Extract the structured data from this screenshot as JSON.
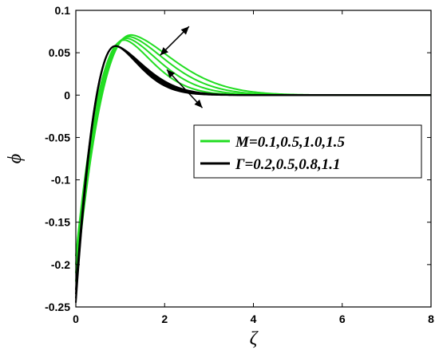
{
  "chart_data": {
    "type": "line",
    "xlabel": "ζ",
    "ylabel": "ϕ",
    "xlim": [
      0,
      8
    ],
    "ylim": [
      -0.25,
      0.1
    ],
    "xticks": [
      0,
      2,
      4,
      6,
      8
    ],
    "xtick_labels": [
      "0",
      "2",
      "4",
      "6",
      "8"
    ],
    "yticks": [
      0.1,
      0.05,
      0,
      -0.05,
      -0.1,
      -0.15,
      -0.2,
      -0.25
    ],
    "ytick_labels": [
      "0.1",
      "0.05",
      "0",
      "-0.05",
      "-0.1",
      "-0.15",
      "-0.2",
      "-0.25"
    ],
    "grid": false,
    "legend": {
      "placement": "right",
      "entries": [
        {
          "label": "M=0.1,0.5,1.0,1.5",
          "color": "#22dd22"
        },
        {
          "label": "Γ=0.2,0.5,0.8,1.1",
          "color": "#000000"
        }
      ]
    },
    "series": [
      {
        "group": "M",
        "color": "#22dd22",
        "y0": -0.19,
        "peak_x": 1.1,
        "peak_y": 0.065,
        "decay": 0.95
      },
      {
        "group": "M",
        "color": "#22dd22",
        "y0": -0.2,
        "peak_x": 1.15,
        "peak_y": 0.067,
        "decay": 1.1
      },
      {
        "group": "M",
        "color": "#22dd22",
        "y0": -0.21,
        "peak_x": 1.2,
        "peak_y": 0.069,
        "decay": 1.25
      },
      {
        "group": "M",
        "color": "#22dd22",
        "y0": -0.22,
        "peak_x": 1.25,
        "peak_y": 0.071,
        "decay": 1.4
      },
      {
        "group": "Γ",
        "color": "#000000",
        "y0": -0.245,
        "peak_x": 0.9,
        "peak_y": 0.058,
        "decay": 0.8
      },
      {
        "group": "Γ",
        "color": "#000000",
        "y0": -0.24,
        "peak_x": 0.9,
        "peak_y": 0.058,
        "decay": 0.85
      },
      {
        "group": "Γ",
        "color": "#000000",
        "y0": -0.235,
        "peak_x": 0.9,
        "peak_y": 0.058,
        "decay": 0.9
      },
      {
        "group": "Γ",
        "color": "#000000",
        "y0": -0.23,
        "peak_x": 0.9,
        "peak_y": 0.058,
        "decay": 0.95
      }
    ],
    "annotations": [
      {
        "type": "double-arrow",
        "from": [
          1.9,
          0.047
        ],
        "to": [
          2.55,
          0.081
        ]
      },
      {
        "type": "double-arrow",
        "from": [
          2.05,
          0.03
        ],
        "to": [
          2.85,
          -0.015
        ]
      }
    ]
  }
}
